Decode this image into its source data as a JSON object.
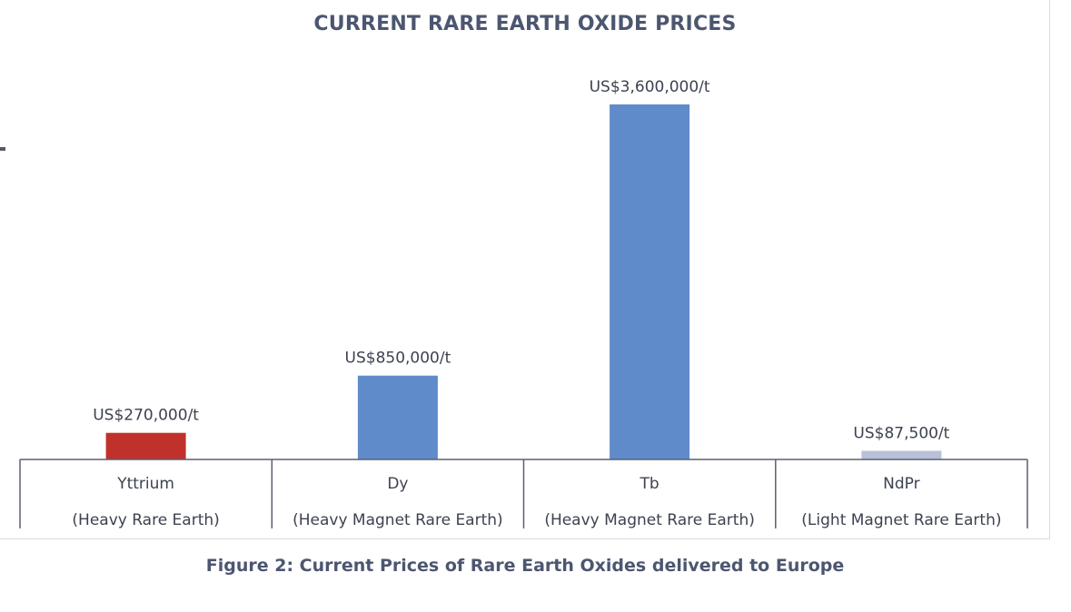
{
  "chart_data": {
    "type": "bar",
    "title": "CURRENT RARE EARTH OXIDE PRICES",
    "categories": [
      "Yttrium",
      "Dy",
      "Tb",
      "NdPr"
    ],
    "subcategories": [
      "(Heavy Rare Earth)",
      "(Heavy Magnet Rare Earth)",
      "(Heavy Magnet Rare Earth)",
      "(Light Magnet Rare Earth)"
    ],
    "values": [
      270000,
      850000,
      3600000,
      87500
    ],
    "data_labels": [
      "US$270,000/t",
      "US$850,000/t",
      "US$3,600,000/t",
      "US$87,500/t"
    ],
    "bar_colors": [
      "#c0312b",
      "#5f8bcb",
      "#5f8bcb",
      "#b8c1d8"
    ],
    "ylim": [
      0,
      3600000
    ],
    "unit": "US$/t",
    "grid": false,
    "legend": "none",
    "xlabel": "",
    "ylabel": ""
  },
  "caption": "Figure 2: Current Prices of Rare Earth Oxides delivered to Europe",
  "colors": {
    "title": "#4c5670",
    "label_text": "#3d4250",
    "axis": "#5a6070",
    "frame": "#d6dbe3"
  }
}
